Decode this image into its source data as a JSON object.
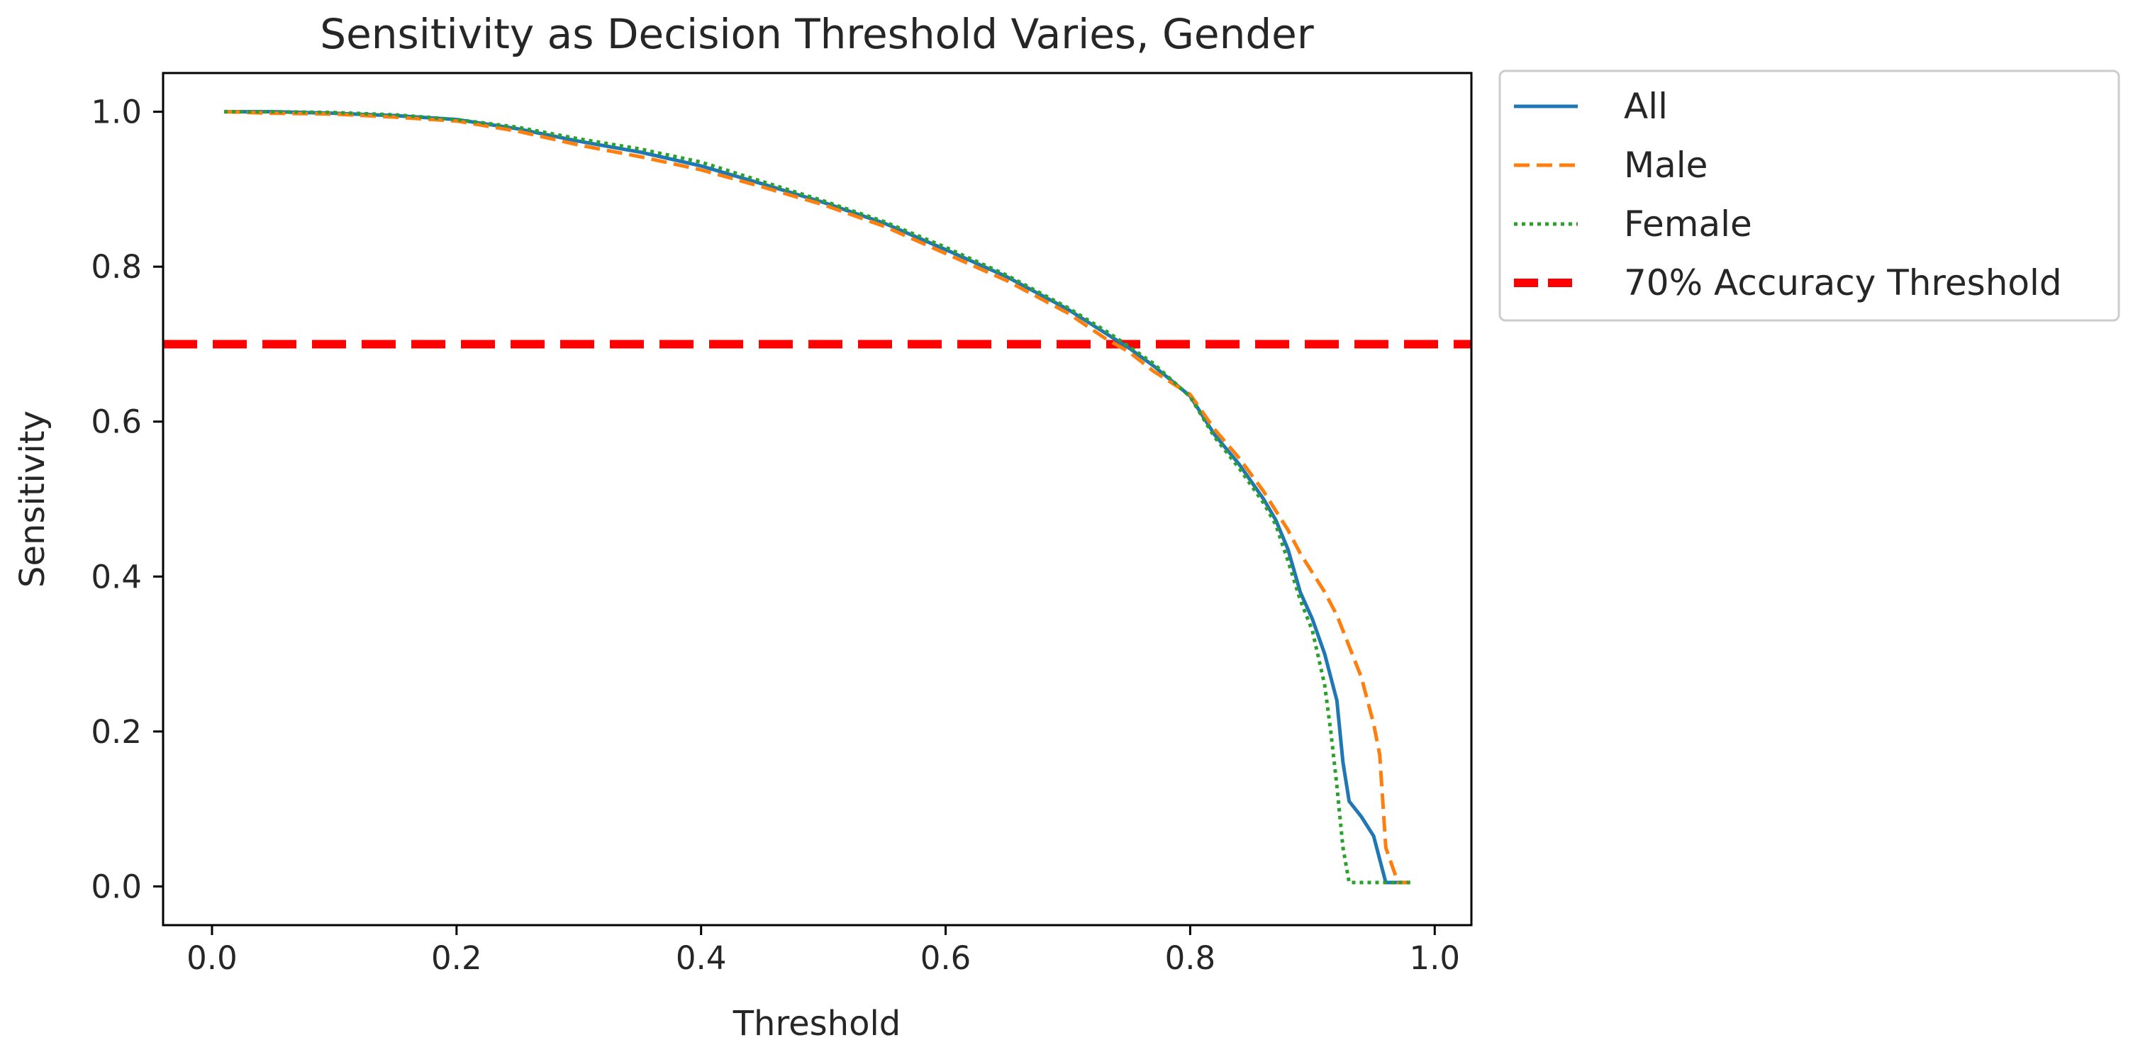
{
  "chart_data": {
    "type": "line",
    "title": "Sensitivity as Decision Threshold Varies, Gender",
    "xlabel": "Threshold",
    "ylabel": "Sensitivity",
    "xlim": [
      -0.04,
      1.03
    ],
    "ylim": [
      -0.05,
      1.05
    ],
    "xticks": [
      0.0,
      0.2,
      0.4,
      0.6,
      0.8,
      1.0
    ],
    "xtick_labels": [
      "0.0",
      "0.2",
      "0.4",
      "0.6",
      "0.8",
      "1.0"
    ],
    "yticks": [
      0.0,
      0.2,
      0.4,
      0.6,
      0.8,
      1.0
    ],
    "ytick_labels": [
      "0.0",
      "0.2",
      "0.4",
      "0.6",
      "0.8",
      "1.0"
    ],
    "grid": false,
    "legend_position": "outside-upper-right",
    "series": [
      {
        "name": "All",
        "color": "#1f77b4",
        "style": "solid",
        "x": [
          0.01,
          0.05,
          0.1,
          0.15,
          0.2,
          0.25,
          0.3,
          0.35,
          0.4,
          0.45,
          0.5,
          0.55,
          0.6,
          0.65,
          0.7,
          0.73,
          0.75,
          0.77,
          0.8,
          0.82,
          0.84,
          0.86,
          0.87,
          0.88,
          0.89,
          0.9,
          0.91,
          0.92,
          0.925,
          0.93,
          0.94,
          0.95,
          0.955,
          0.96,
          0.97,
          0.98
        ],
        "y": [
          1.0,
          1.0,
          0.998,
          0.995,
          0.99,
          0.978,
          0.962,
          0.948,
          0.93,
          0.907,
          0.883,
          0.856,
          0.822,
          0.787,
          0.745,
          0.715,
          0.695,
          0.672,
          0.633,
          0.583,
          0.545,
          0.5,
          0.473,
          0.435,
          0.38,
          0.345,
          0.3,
          0.24,
          0.16,
          0.11,
          0.09,
          0.065,
          0.035,
          0.005,
          0.005,
          0.005
        ]
      },
      {
        "name": "Male",
        "color": "#ff7f0e",
        "style": "dashed",
        "x": [
          0.01,
          0.05,
          0.1,
          0.15,
          0.2,
          0.25,
          0.3,
          0.35,
          0.4,
          0.45,
          0.5,
          0.55,
          0.6,
          0.65,
          0.7,
          0.73,
          0.75,
          0.77,
          0.8,
          0.82,
          0.84,
          0.86,
          0.87,
          0.88,
          0.89,
          0.9,
          0.91,
          0.92,
          0.93,
          0.94,
          0.95,
          0.955,
          0.96,
          0.97,
          0.98
        ],
        "y": [
          1.0,
          0.998,
          0.997,
          0.993,
          0.988,
          0.975,
          0.957,
          0.942,
          0.925,
          0.903,
          0.88,
          0.852,
          0.817,
          0.782,
          0.74,
          0.708,
          0.69,
          0.665,
          0.635,
          0.59,
          0.553,
          0.51,
          0.485,
          0.46,
          0.43,
          0.405,
          0.38,
          0.35,
          0.31,
          0.27,
          0.21,
          0.17,
          0.05,
          0.005,
          0.005
        ]
      },
      {
        "name": "Female",
        "color": "#2ca02c",
        "style": "dotted",
        "x": [
          0.01,
          0.05,
          0.1,
          0.15,
          0.2,
          0.25,
          0.3,
          0.35,
          0.4,
          0.45,
          0.5,
          0.55,
          0.6,
          0.65,
          0.7,
          0.73,
          0.75,
          0.77,
          0.8,
          0.82,
          0.84,
          0.86,
          0.87,
          0.88,
          0.89,
          0.9,
          0.91,
          0.915,
          0.92,
          0.925,
          0.93,
          0.94,
          0.95,
          0.96,
          0.97,
          0.98
        ],
        "y": [
          1.0,
          1.0,
          0.999,
          0.996,
          0.99,
          0.98,
          0.965,
          0.952,
          0.935,
          0.91,
          0.885,
          0.858,
          0.825,
          0.789,
          0.747,
          0.718,
          0.697,
          0.675,
          0.632,
          0.58,
          0.54,
          0.495,
          0.467,
          0.42,
          0.37,
          0.33,
          0.26,
          0.2,
          0.13,
          0.05,
          0.005,
          0.005,
          0.005,
          0.005,
          0.005,
          0.005
        ]
      }
    ],
    "reference_lines": [
      {
        "name": "70% Accuracy Threshold",
        "orientation": "horizontal",
        "y": 0.7,
        "color": "#ff0000",
        "style": "dashed"
      }
    ]
  }
}
